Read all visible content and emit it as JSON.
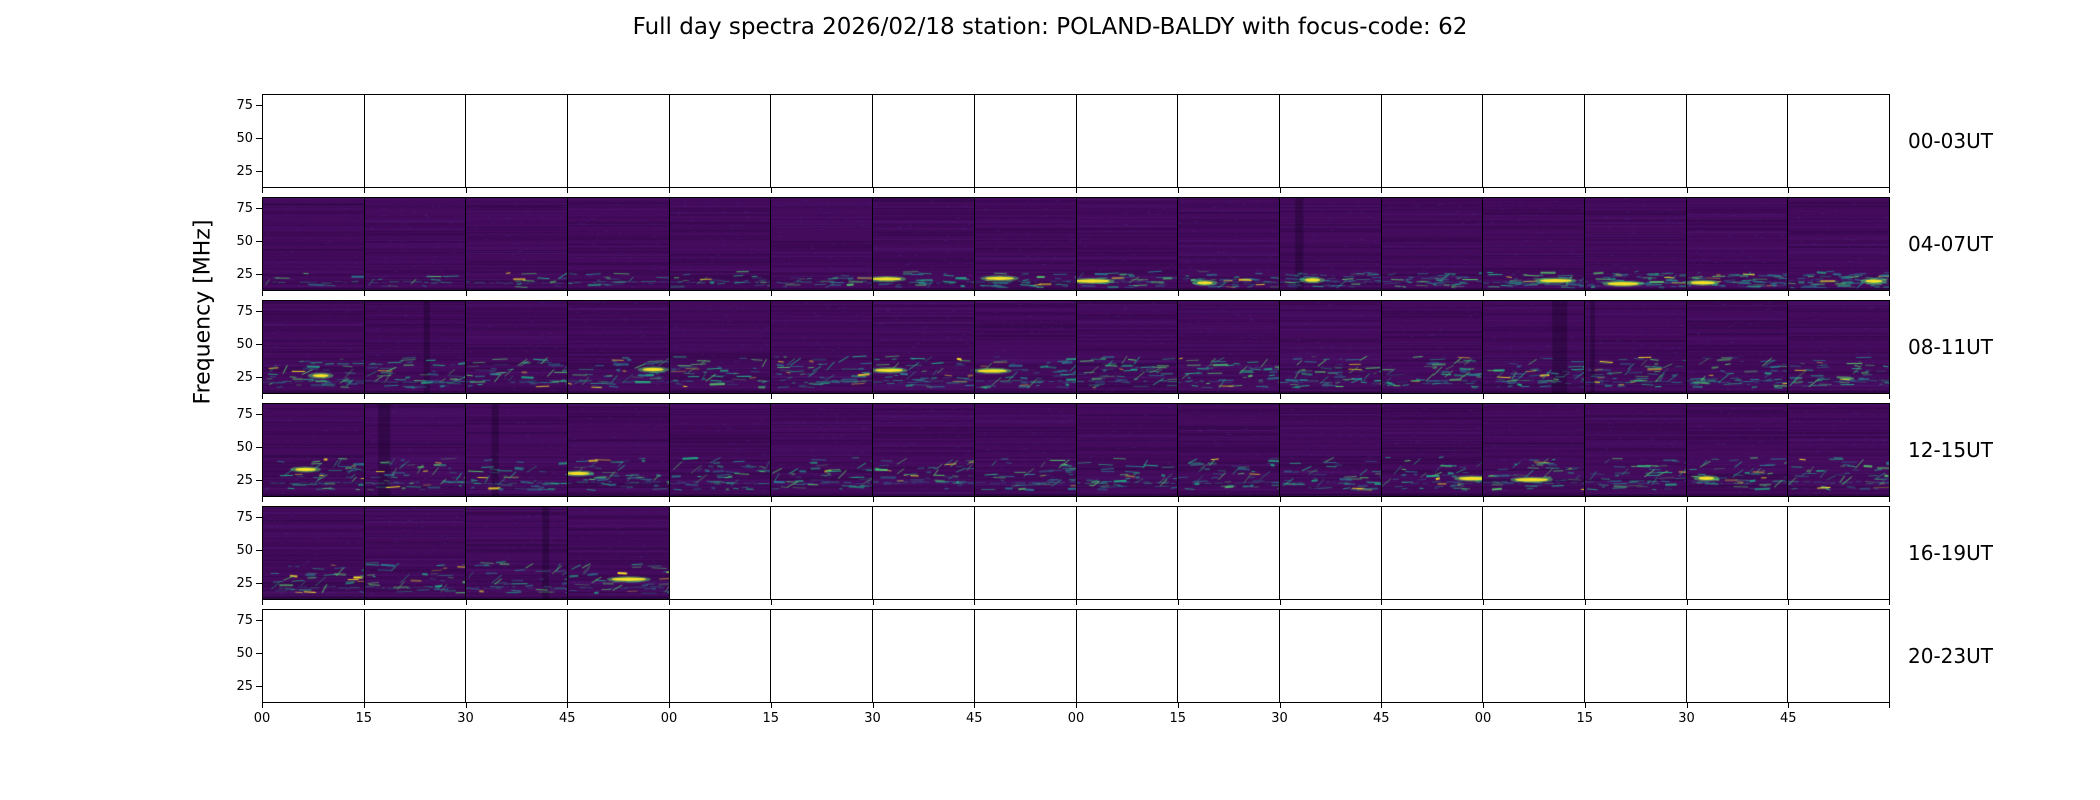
{
  "figure": {
    "background_color": "#ffffff"
  },
  "chart_data": {
    "type": "heatmap",
    "subtype": "solar-radio-spectrogram-grid",
    "title": "Full day spectra 2026/02/18 station: POLAND-BALDY with focus-code: 62",
    "station": "POLAND-BALDY",
    "date": "2026/02/18",
    "focus_code": "62",
    "ylabel": "Frequency [MHz]",
    "colormap": "viridis",
    "legend": "none",
    "grid": "panel-borders",
    "y_ticks": [
      "75",
      "50",
      "25"
    ],
    "y_range_mhz": [
      12.5,
      84
    ],
    "x_tick_labels": [
      "00",
      "15",
      "30",
      "45",
      "00",
      "15",
      "30",
      "45",
      "00",
      "15",
      "30",
      "45",
      "00",
      "15",
      "30",
      "45"
    ],
    "panels_per_row": 16,
    "minutes_per_panel": 15,
    "emission_band_mhz": [
      15,
      35
    ],
    "palette": {
      "base": "#440a5c",
      "teal": "#2a788e",
      "green": "#22a884",
      "bright_green": "#54c568",
      "yellow": "#fde725",
      "axis": "#000000",
      "empty": "#ffffff"
    },
    "rows": [
      {
        "label": "00-03UT",
        "panels_with_data": 0
      },
      {
        "label": "04-07UT",
        "panels_with_data": 16,
        "texture": {
          "band": [
            0.8,
            0.97
          ],
          "density_start": 6,
          "density_end": 55,
          "yellow_start": 0.0,
          "yellow_end": 0.9,
          "baseline_y": 0.91,
          "baseline_alpha": 0.55,
          "slash": 0.15
        }
      },
      {
        "label": "08-11UT",
        "panels_with_data": 16,
        "texture": {
          "band": [
            0.6,
            0.94
          ],
          "density_start": 40,
          "density_end": 48,
          "yellow_start": 0.3,
          "yellow_end": 0.4,
          "baseline_y": 0.87,
          "baseline_alpha": 0.7,
          "slash": 0.8
        }
      },
      {
        "label": "12-15UT",
        "panels_with_data": 16,
        "texture": {
          "band": [
            0.58,
            0.93
          ],
          "density_start": 36,
          "density_end": 40,
          "yellow_start": 0.3,
          "yellow_end": 0.3,
          "baseline_y": 0.85,
          "baseline_alpha": 0.6,
          "slash": 0.8
        }
      },
      {
        "label": "16-19UT",
        "panels_with_data": 4,
        "texture": {
          "band": [
            0.6,
            0.94
          ],
          "density_start": 30,
          "density_end": 34,
          "yellow_start": 0.1,
          "yellow_end": 0.1,
          "baseline_y": 0.87,
          "baseline_alpha": 0.6,
          "slash": 0.7
        }
      },
      {
        "label": "20-23UT",
        "panels_with_data": 0
      }
    ]
  }
}
